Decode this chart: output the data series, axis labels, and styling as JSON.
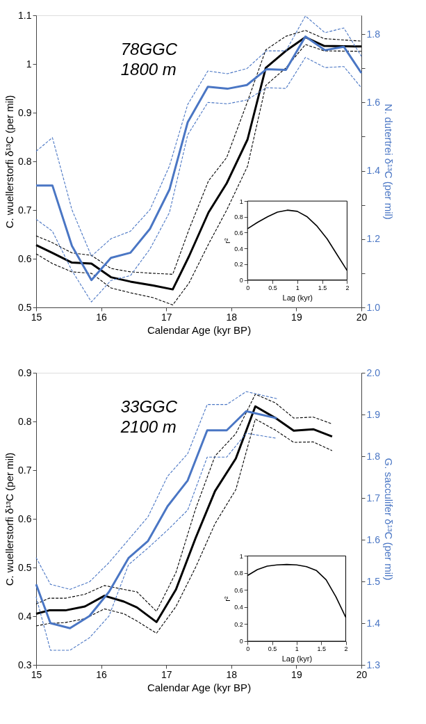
{
  "chart_data": [
    {
      "type": "line",
      "xlabel": "Calendar Age (kyr BP)",
      "ylabel": "C. wuellerstorfi  δ¹³C (per mil)",
      "y2label": "N. dutertrei  δ¹³C (per mil)",
      "annotations": [
        "78GGC",
        "1800 m"
      ],
      "xlim": [
        15,
        20
      ],
      "xticks": [
        15,
        16,
        17,
        18,
        19,
        20
      ],
      "ylim": [
        0.5,
        1.1
      ],
      "yticks": [
        0.5,
        0.6,
        0.7,
        0.8,
        0.9,
        1,
        1.1
      ],
      "y2lim": [
        1.0,
        1.855
      ],
      "y2ticks": [
        {
          "value": 1.0,
          "label": "1.0"
        },
        {
          "value": 1.1,
          "label": null
        },
        1.2,
        {
          "value": 1.3,
          "label": null
        },
        1.4,
        {
          "value": 1.5,
          "label": null
        },
        1.6,
        {
          "value": 1.7,
          "label": null
        },
        1.8
      ],
      "grid": false,
      "series": [
        {
          "color": "#000000",
          "line_style": "solid",
          "x": [
            15.0,
            15.25,
            15.55,
            15.85,
            16.15,
            16.45,
            16.8,
            17.1,
            17.35,
            17.65,
            17.93,
            18.25,
            18.53,
            18.84,
            19.14,
            19.43,
            20.0
          ],
          "values": [
            0.628,
            0.612,
            0.592,
            0.59,
            0.562,
            0.553,
            0.545,
            0.537,
            0.605,
            0.695,
            0.755,
            0.845,
            0.992,
            1.027,
            1.055,
            1.037,
            1.036
          ]
        },
        {
          "color": "#000000",
          "line_style": "dashed",
          "x": [
            15.0,
            15.25,
            15.55,
            15.85,
            16.15,
            16.45,
            16.8,
            17.1,
            17.35,
            17.65,
            17.93,
            18.25,
            18.53,
            18.84,
            19.14,
            19.43,
            20.0
          ],
          "values": [
            0.647,
            0.633,
            0.612,
            0.607,
            0.58,
            0.573,
            0.57,
            0.568,
            0.66,
            0.76,
            0.808,
            0.923,
            1.029,
            1.057,
            1.069,
            1.052,
            1.047
          ]
        },
        {
          "color": "#000000",
          "line_style": "dashed",
          "x": [
            15.0,
            15.25,
            15.55,
            15.85,
            16.15,
            16.45,
            16.8,
            17.1,
            17.35,
            17.65,
            17.93,
            18.25,
            18.53,
            18.84,
            19.14,
            19.43,
            20.0
          ],
          "values": [
            0.61,
            0.59,
            0.573,
            0.57,
            0.54,
            0.53,
            0.52,
            0.505,
            0.55,
            0.63,
            0.7,
            0.79,
            0.956,
            0.992,
            1.04,
            1.027,
            1.026
          ]
        },
        {
          "color": "#4a76c4",
          "line_style": "solid",
          "axis": "y2",
          "x": [
            15.0,
            15.25,
            15.55,
            15.85,
            16.15,
            16.45,
            16.75,
            17.05,
            17.33,
            17.64,
            17.94,
            18.24,
            18.54,
            18.84,
            19.14,
            19.44,
            19.73,
            20.0
          ],
          "values": [
            1.357,
            1.357,
            1.18,
            1.08,
            1.145,
            1.16,
            1.23,
            1.345,
            1.542,
            1.646,
            1.64,
            1.651,
            1.697,
            1.695,
            1.793,
            1.753,
            1.763,
            1.686
          ]
        },
        {
          "color": "#4a76c4",
          "line_style": "dashed",
          "axis": "y2",
          "x": [
            15.0,
            15.25,
            15.55,
            15.85,
            16.15,
            16.45,
            16.75,
            17.05,
            17.33,
            17.64,
            17.94,
            18.24,
            18.54,
            18.84,
            19.14,
            19.44,
            19.73,
            20.0
          ],
          "values": [
            1.457,
            1.497,
            1.286,
            1.15,
            1.201,
            1.223,
            1.286,
            1.414,
            1.594,
            1.692,
            1.684,
            1.699,
            1.751,
            1.751,
            1.853,
            1.804,
            1.818,
            1.735
          ]
        },
        {
          "color": "#4a76c4",
          "line_style": "dashed",
          "axis": "y2",
          "x": [
            15.0,
            15.25,
            15.55,
            15.85,
            16.15,
            16.45,
            16.75,
            17.05,
            17.33,
            17.64,
            17.94,
            18.24,
            18.54,
            18.84,
            19.14,
            19.44,
            19.73,
            20.0
          ],
          "values": [
            1.258,
            1.223,
            1.108,
            1.016,
            1.079,
            1.093,
            1.171,
            1.278,
            1.505,
            1.6,
            1.596,
            1.607,
            1.643,
            1.641,
            1.732,
            1.702,
            1.705,
            1.643
          ]
        }
      ]
    },
    {
      "type": "line",
      "xlabel": "Lag (kyr)",
      "ylabel": "r²",
      "xlim": [
        0,
        2
      ],
      "xticks": [
        0,
        0.5,
        1,
        1.5,
        2
      ],
      "ylim": [
        0,
        1
      ],
      "yticks": [
        0,
        0.2,
        0.4,
        0.6,
        0.8,
        1
      ],
      "grid": false,
      "series": [
        {
          "color": "#000000",
          "line_style": "solid",
          "x": [
            0,
            0.2,
            0.4,
            0.6,
            0.8,
            1.0,
            1.2,
            1.4,
            1.6,
            1.8,
            2.0
          ],
          "values": [
            0.65,
            0.73,
            0.8,
            0.86,
            0.885,
            0.87,
            0.8,
            0.68,
            0.52,
            0.32,
            0.12
          ]
        }
      ]
    },
    {
      "type": "line",
      "xlabel": "Calendar Age (kyr BP)",
      "ylabel": "C. wuellerstorfi  δ¹³C (per mil)",
      "y2label": "G. sacculifer  δ¹³C (per mil)",
      "annotations": [
        "33GGC",
        "2100 m"
      ],
      "xlim": [
        15,
        20
      ],
      "xticks": [
        15,
        16,
        17,
        18,
        19,
        20
      ],
      "ylim": [
        0.3,
        0.9
      ],
      "yticks": [
        0.3,
        0.4,
        0.5,
        0.6,
        0.7,
        0.8,
        0.9
      ],
      "y2lim": [
        1.3,
        2.0
      ],
      "y2ticks": [
        1.3,
        1.4,
        1.5,
        1.6,
        1.7,
        1.8,
        1.9,
        {
          "value": 2.0,
          "label": "2.0"
        }
      ],
      "grid": false,
      "series": [
        {
          "color": "#000000",
          "line_style": "solid",
          "x": [
            15.0,
            15.2,
            15.45,
            15.75,
            16.05,
            16.35,
            16.55,
            16.85,
            17.15,
            17.45,
            17.75,
            18.07,
            18.37,
            18.68,
            18.96,
            19.26,
            19.55
          ],
          "values": [
            0.405,
            0.412,
            0.412,
            0.42,
            0.442,
            0.43,
            0.418,
            0.388,
            0.455,
            0.56,
            0.657,
            0.724,
            0.831,
            0.807,
            0.781,
            0.784,
            0.769
          ]
        },
        {
          "color": "#000000",
          "line_style": "dashed",
          "x": [
            15.0,
            15.2,
            15.45,
            15.75,
            16.05,
            16.35,
            16.55,
            16.85,
            17.15,
            17.45,
            17.75,
            18.07,
            18.37,
            18.68,
            18.96,
            19.26,
            19.55
          ],
          "values": [
            0.425,
            0.437,
            0.437,
            0.445,
            0.463,
            0.455,
            0.45,
            0.41,
            0.49,
            0.62,
            0.729,
            0.775,
            0.856,
            0.838,
            0.807,
            0.809,
            0.795
          ]
        },
        {
          "color": "#000000",
          "line_style": "dashed",
          "x": [
            15.0,
            15.2,
            15.45,
            15.75,
            16.05,
            16.35,
            16.55,
            16.85,
            17.15,
            17.45,
            17.75,
            18.07,
            18.37,
            18.68,
            18.96,
            19.26,
            19.55
          ],
          "values": [
            0.38,
            0.385,
            0.387,
            0.395,
            0.415,
            0.405,
            0.39,
            0.365,
            0.42,
            0.5,
            0.59,
            0.66,
            0.805,
            0.782,
            0.757,
            0.758,
            0.74
          ]
        },
        {
          "color": "#4a76c4",
          "line_style": "solid",
          "axis": "y2",
          "x": [
            15.0,
            15.22,
            15.52,
            15.82,
            16.12,
            16.42,
            16.72,
            17.02,
            17.33,
            17.63,
            17.93,
            18.23,
            18.7
          ],
          "values": [
            1.493,
            1.4,
            1.388,
            1.417,
            1.475,
            1.556,
            1.597,
            1.68,
            1.742,
            1.862,
            1.862,
            1.908,
            1.891
          ]
        },
        {
          "color": "#4a76c4",
          "line_style": "dashed",
          "axis": "y2",
          "x": [
            15.0,
            15.22,
            15.52,
            15.82,
            16.12,
            16.42,
            16.72,
            17.02,
            17.33,
            17.63,
            17.93,
            18.23,
            18.7
          ],
          "values": [
            1.557,
            1.493,
            1.481,
            1.499,
            1.545,
            1.6,
            1.655,
            1.752,
            1.806,
            1.924,
            1.924,
            1.955,
            1.938
          ]
        },
        {
          "color": "#4a76c4",
          "line_style": "dashed",
          "axis": "y2",
          "x": [
            15.0,
            15.22,
            15.52,
            15.82,
            16.12,
            16.42,
            16.72,
            17.02,
            17.33,
            17.63,
            17.93,
            18.23,
            18.7
          ],
          "values": [
            1.463,
            1.335,
            1.335,
            1.365,
            1.417,
            1.54,
            1.58,
            1.623,
            1.671,
            1.798,
            1.798,
            1.855,
            1.843
          ]
        }
      ]
    },
    {
      "type": "line",
      "xlabel": "Lag (kyr)",
      "ylabel": "r²",
      "xlim": [
        0,
        2
      ],
      "xticks": [
        0,
        0.5,
        1,
        1.5,
        2
      ],
      "ylim": [
        0,
        1
      ],
      "yticks": [
        0,
        0.2,
        0.4,
        0.6,
        0.8,
        1
      ],
      "grid": false,
      "series": [
        {
          "color": "#000000",
          "line_style": "solid",
          "x": [
            0,
            0.2,
            0.4,
            0.6,
            0.8,
            1.0,
            1.2,
            1.4,
            1.6,
            1.8,
            2.0
          ],
          "values": [
            0.77,
            0.84,
            0.88,
            0.895,
            0.9,
            0.895,
            0.875,
            0.83,
            0.72,
            0.52,
            0.28
          ]
        }
      ]
    }
  ]
}
